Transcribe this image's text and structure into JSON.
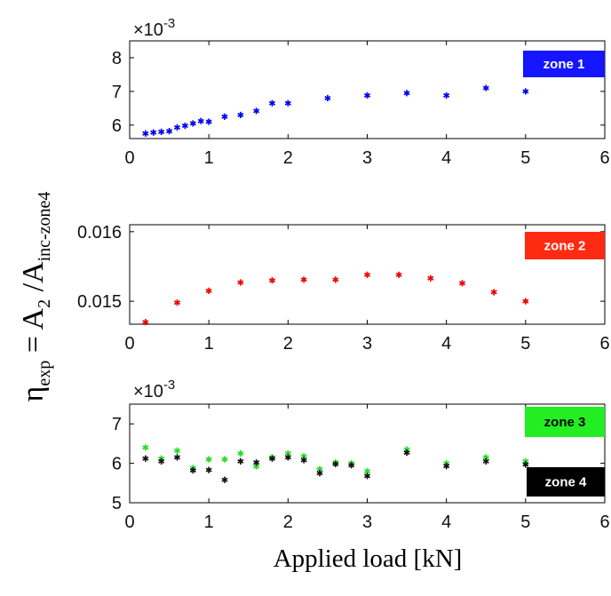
{
  "figure": {
    "xlabel": "Applied load [kN]",
    "ylabel": {
      "eta": "η",
      "eta_sub": "exp",
      "eq": " = A",
      "a2_sub": "2",
      "slash": " /A",
      "ainc_sub": "inc-zone4"
    }
  },
  "chart_data": [
    {
      "type": "scatter",
      "panel": "top",
      "multiplier_label": "×10",
      "multiplier_exponent": "-3",
      "xlim": [
        0,
        6
      ],
      "ylim": [
        5.6,
        8.5
      ],
      "xticks": [
        0,
        1,
        2,
        3,
        4,
        5,
        6
      ],
      "yticks": [
        6,
        7,
        8
      ],
      "grid": false,
      "legend_position": "top-right",
      "badges": [
        {
          "label": "zone 1",
          "bg": "#1515ff",
          "fg": "#ffffff"
        }
      ],
      "series": [
        {
          "name": "zone 1",
          "color": "#0000ee",
          "points": [
            [
              0.2,
              5.75
            ],
            [
              0.3,
              5.78
            ],
            [
              0.4,
              5.8
            ],
            [
              0.5,
              5.82
            ],
            [
              0.6,
              5.93
            ],
            [
              0.7,
              5.98
            ],
            [
              0.8,
              6.05
            ],
            [
              0.9,
              6.12
            ],
            [
              1.0,
              6.1
            ],
            [
              1.2,
              6.25
            ],
            [
              1.4,
              6.3
            ],
            [
              1.6,
              6.42
            ],
            [
              1.8,
              6.65
            ],
            [
              2.0,
              6.65
            ],
            [
              2.5,
              6.8
            ],
            [
              3.0,
              6.88
            ],
            [
              3.5,
              6.95
            ],
            [
              4.0,
              6.88
            ],
            [
              4.5,
              7.1
            ],
            [
              5.0,
              7.0
            ]
          ]
        }
      ]
    },
    {
      "type": "scatter",
      "panel": "middle",
      "xlim": [
        0,
        6
      ],
      "ylim": [
        0.01467,
        0.0161
      ],
      "xticks": [
        0,
        1,
        2,
        3,
        4,
        5,
        6
      ],
      "yticks": [
        0.015,
        0.016
      ],
      "ytick_labels": [
        "0.015",
        "0.016"
      ],
      "grid": false,
      "legend_position": "top-right",
      "badges": [
        {
          "label": "zone 2",
          "bg": "#ff2a12",
          "fg": "#ffffff"
        }
      ],
      "series": [
        {
          "name": "zone 2",
          "color": "#ee0000",
          "points": [
            [
              0.2,
              0.0147
            ],
            [
              0.6,
              0.01498
            ],
            [
              1.0,
              0.01515
            ],
            [
              1.4,
              0.01527
            ],
            [
              1.8,
              0.0153
            ],
            [
              2.2,
              0.01531
            ],
            [
              2.6,
              0.01531
            ],
            [
              3.0,
              0.01538
            ],
            [
              3.4,
              0.01538
            ],
            [
              3.8,
              0.01533
            ],
            [
              4.2,
              0.01526
            ],
            [
              4.6,
              0.01513
            ],
            [
              5.0,
              0.015
            ]
          ]
        }
      ]
    },
    {
      "type": "scatter",
      "panel": "bottom",
      "multiplier_label": "×10",
      "multiplier_exponent": "-3",
      "xlim": [
        0,
        6
      ],
      "ylim": [
        5.0,
        7.5
      ],
      "xticks": [
        0,
        1,
        2,
        3,
        4,
        5,
        6
      ],
      "yticks": [
        5,
        6,
        7
      ],
      "grid": false,
      "legend_position": "right",
      "badges": [
        {
          "label": "zone 3",
          "bg": "#22ee22",
          "fg": "#000000"
        },
        {
          "label": "zone 4",
          "bg": "#000000",
          "fg": "#ffffff"
        }
      ],
      "series": [
        {
          "name": "zone 3",
          "color": "#22dd22",
          "points": [
            [
              0.2,
              6.4
            ],
            [
              0.4,
              6.12
            ],
            [
              0.6,
              6.32
            ],
            [
              0.8,
              5.88
            ],
            [
              1.0,
              6.1
            ],
            [
              1.2,
              6.1
            ],
            [
              1.4,
              6.25
            ],
            [
              1.6,
              5.92
            ],
            [
              1.8,
              6.15
            ],
            [
              2.0,
              6.25
            ],
            [
              2.2,
              6.18
            ],
            [
              2.4,
              5.85
            ],
            [
              2.6,
              6.02
            ],
            [
              2.8,
              6.0
            ],
            [
              3.0,
              5.8
            ],
            [
              3.5,
              6.35
            ],
            [
              4.0,
              6.0
            ],
            [
              4.5,
              6.15
            ],
            [
              5.0,
              6.05
            ]
          ]
        },
        {
          "name": "zone 4",
          "color": "#111111",
          "points": [
            [
              0.2,
              6.12
            ],
            [
              0.4,
              6.05
            ],
            [
              0.6,
              6.15
            ],
            [
              0.8,
              5.82
            ],
            [
              1.0,
              5.83
            ],
            [
              1.2,
              5.58
            ],
            [
              1.4,
              6.05
            ],
            [
              1.6,
              6.02
            ],
            [
              1.8,
              6.12
            ],
            [
              2.0,
              6.15
            ],
            [
              2.2,
              6.08
            ],
            [
              2.4,
              5.75
            ],
            [
              2.6,
              5.98
            ],
            [
              2.8,
              5.95
            ],
            [
              3.0,
              5.68
            ],
            [
              3.5,
              6.27
            ],
            [
              4.0,
              5.93
            ],
            [
              4.5,
              6.05
            ],
            [
              5.0,
              5.97
            ]
          ]
        }
      ]
    }
  ]
}
